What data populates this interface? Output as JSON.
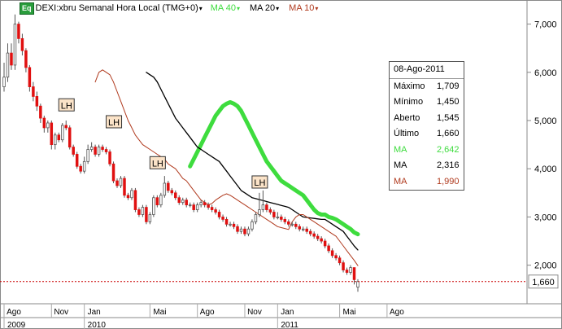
{
  "header": {
    "eq_badge": "Eq",
    "symbol_label": "DEXI:xbru Semanal Hora Local (TMG+0)",
    "ma40_label": "MA 40",
    "ma20_label": "MA 20",
    "ma10_label": "MA 10",
    "ma40_color": "#3edc3e",
    "ma20_color": "#000000",
    "ma10_color": "#b03a1e",
    "dropdown_arrow": "▾"
  },
  "info_box": {
    "date": "08-Ago-2011",
    "rows": [
      {
        "label": "Máximo",
        "value": "1,709",
        "color": "#000000"
      },
      {
        "label": "Mínimo",
        "value": "1,450",
        "color": "#000000"
      },
      {
        "label": "Aberto",
        "value": "1,545",
        "color": "#000000"
      },
      {
        "label": "Último",
        "value": "1,660",
        "color": "#000000"
      },
      {
        "label": "MA",
        "value": "2,642",
        "color": "#3edc3e"
      },
      {
        "label": "MA",
        "value": "2,316",
        "color": "#000000"
      },
      {
        "label": "MA",
        "value": "1,990",
        "color": "#b03a1e"
      }
    ]
  },
  "chart_data": {
    "type": "candlestick",
    "y_axis": {
      "min": 1200,
      "max": 7500,
      "ticks": [
        2000,
        3000,
        4000,
        5000,
        6000,
        7000
      ],
      "tick_labels": [
        "2,000",
        "3,000",
        "4,000",
        "5,000",
        "6,000",
        "7,000"
      ]
    },
    "last_price": {
      "value": 1660,
      "label": "1,660",
      "color": "#cc0000"
    },
    "x_axis": {
      "months": [
        {
          "label": "Ago",
          "week": 0
        },
        {
          "label": "Nov",
          "week": 13
        },
        {
          "label": "Jan",
          "week": 22
        },
        {
          "label": "Mai",
          "week": 40
        },
        {
          "label": "Ago",
          "week": 53
        },
        {
          "label": "Nov",
          "week": 66
        },
        {
          "label": "Jan",
          "week": 75
        },
        {
          "label": "Mai",
          "week": 92
        },
        {
          "label": "Ago",
          "week": 105
        }
      ],
      "years": [
        {
          "label": "2009",
          "start_week": 0
        },
        {
          "label": "2010",
          "start_week": 22
        },
        {
          "label": "2011",
          "start_week": 75
        }
      ]
    },
    "colors": {
      "up": "#ffffff",
      "down": "#e01010",
      "wick": "#555555",
      "up_border": "#555555"
    },
    "candles_close": [
      5900,
      6400,
      6150,
      7000,
      6700,
      6450,
      6100,
      5700,
      5500,
      5300,
      5050,
      4850,
      4950,
      4500,
      4700,
      4600,
      4900,
      4850,
      4450,
      4300,
      4050,
      3950,
      4150,
      4400,
      4450,
      4300,
      4450,
      4400,
      4350,
      4100,
      3750,
      3650,
      3800,
      3450,
      3400,
      3550,
      3150,
      3050,
      3200,
      2900,
      3050,
      3400,
      3250,
      3450,
      3700,
      3550,
      3500,
      3400,
      3300,
      3350,
      3250,
      3250,
      3150,
      3250,
      3300,
      3250,
      3200,
      3150,
      3100,
      3000,
      2950,
      2850,
      2850,
      2800,
      2700,
      2750,
      2650,
      2750,
      2900,
      3050,
      3150,
      3250,
      3150,
      3100,
      3000,
      3000,
      2950,
      2900,
      2850,
      2850,
      2800,
      2750,
      2750,
      2700,
      2650,
      2600,
      2550,
      2500,
      2400,
      2300,
      2200,
      2150,
      2050,
      1900,
      1850,
      1950,
      1700,
      1660
    ],
    "candles_open": [
      5700,
      5900,
      6400,
      6150,
      7000,
      6700,
      6450,
      6100,
      5700,
      5500,
      5300,
      5050,
      4850,
      4950,
      4500,
      4700,
      4600,
      4900,
      4850,
      4450,
      4300,
      4050,
      3950,
      4150,
      4400,
      4450,
      4300,
      4450,
      4400,
      4350,
      4100,
      3750,
      3650,
      3800,
      3450,
      3400,
      3550,
      3150,
      3050,
      3200,
      2900,
      3050,
      3400,
      3250,
      3450,
      3700,
      3550,
      3500,
      3400,
      3300,
      3350,
      3250,
      3250,
      3150,
      3250,
      3300,
      3250,
      3200,
      3150,
      3100,
      3000,
      2950,
      2850,
      2850,
      2800,
      2700,
      2750,
      2650,
      2750,
      2900,
      3050,
      3150,
      3250,
      3150,
      3100,
      3000,
      3000,
      2950,
      2900,
      2850,
      2850,
      2800,
      2750,
      2750,
      2700,
      2650,
      2600,
      2550,
      2500,
      2400,
      2300,
      2200,
      2150,
      2050,
      1900,
      1850,
      1950,
      1545
    ],
    "candles_high": [
      6200,
      6600,
      6600,
      7200,
      7050,
      6800,
      6500,
      6150,
      5800,
      5600,
      5350,
      5100,
      5000,
      5000,
      4750,
      4750,
      4950,
      5000,
      4900,
      4500,
      4350,
      4100,
      4250,
      4500,
      4550,
      4500,
      4500,
      4500,
      4450,
      4400,
      4150,
      3800,
      3850,
      3850,
      3500,
      3600,
      3600,
      3200,
      3250,
      3250,
      3100,
      3450,
      3450,
      3500,
      3850,
      3750,
      3600,
      3550,
      3450,
      3400,
      3400,
      3300,
      3300,
      3300,
      3350,
      3350,
      3300,
      3250,
      3200,
      3150,
      3050,
      3000,
      2900,
      2900,
      2850,
      2800,
      2800,
      2800,
      2950,
      3100,
      3500,
      3550,
      3300,
      3200,
      3150,
      3100,
      3050,
      3000,
      2950,
      2900,
      2900,
      2850,
      2800,
      2800,
      2750,
      2700,
      2650,
      2600,
      2550,
      2450,
      2350,
      2250,
      2200,
      2100,
      1950,
      2000,
      1950,
      1709
    ],
    "candles_low": [
      5600,
      5800,
      6050,
      6050,
      6600,
      6350,
      6000,
      5600,
      5400,
      5200,
      4950,
      4750,
      4750,
      4400,
      4400,
      4550,
      4550,
      4800,
      4400,
      4250,
      4000,
      3900,
      3900,
      4100,
      4350,
      4250,
      4250,
      4350,
      4300,
      4050,
      3700,
      3600,
      3600,
      3400,
      3350,
      3350,
      3100,
      3000,
      3000,
      2850,
      2850,
      3000,
      3200,
      3200,
      3400,
      3500,
      3450,
      3350,
      3250,
      3250,
      3200,
      3200,
      3100,
      3100,
      3200,
      3200,
      3150,
      3100,
      3050,
      2950,
      2900,
      2800,
      2800,
      2750,
      2650,
      2650,
      2600,
      2600,
      2700,
      2850,
      3000,
      3100,
      3100,
      3050,
      2950,
      2950,
      2900,
      2850,
      2800,
      2800,
      2750,
      2700,
      2700,
      2650,
      2600,
      2550,
      2500,
      2450,
      2350,
      2250,
      2150,
      2100,
      2000,
      1850,
      1800,
      1800,
      1600,
      1450
    ],
    "ma40": [
      null,
      null,
      null,
      null,
      null,
      null,
      null,
      null,
      null,
      null,
      null,
      null,
      null,
      null,
      null,
      null,
      null,
      null,
      null,
      null,
      null,
      null,
      null,
      null,
      null,
      null,
      null,
      null,
      null,
      null,
      null,
      null,
      null,
      null,
      null,
      null,
      null,
      null,
      null,
      null,
      4050,
      4200,
      4350,
      4500,
      4650,
      4800,
      4950,
      5100,
      5200,
      5300,
      5350,
      5380,
      5350,
      5300,
      5200,
      5050,
      4900,
      4750,
      4600,
      4450,
      4300,
      4150,
      4050,
      3950,
      3850,
      3750,
      3700,
      3650,
      3600,
      3550,
      3500,
      3450,
      3350,
      3250,
      3150,
      3080,
      3050,
      3050,
      3000,
      2980,
      2950,
      2900,
      2850,
      2800,
      2750,
      2680,
      2642
    ],
    "ma20": [
      6000,
      5950,
      5900,
      5800,
      5650,
      5500,
      5350,
      5200,
      5050,
      4950,
      4850,
      4750,
      4650,
      4550,
      4450,
      4400,
      4350,
      4300,
      4250,
      4200,
      4150,
      4050,
      3950,
      3850,
      3750,
      3650,
      3550,
      3500,
      3450,
      3400,
      3380,
      3360,
      3340,
      3320,
      3300,
      3280,
      3260,
      3240,
      3220,
      3200,
      3150,
      3100,
      3050,
      3000,
      2990,
      2980,
      2970,
      2960,
      2950,
      2950,
      2900,
      2850,
      2800,
      2750,
      2700,
      2600,
      2500,
      2400,
      2316
    ],
    "ma10": [
      5800,
      6000,
      6050,
      6000,
      5950,
      5800,
      5600,
      5400,
      5200,
      5000,
      4850,
      4700,
      4600,
      4500,
      4450,
      4400,
      4350,
      4300,
      4250,
      4200,
      4100,
      4050,
      4000,
      3900,
      3800,
      3750,
      3650,
      3550,
      3450,
      3350,
      3300,
      3250,
      3280,
      3350,
      3400,
      3450,
      3480,
      3450,
      3400,
      3350,
      3300,
      3250,
      3200,
      3150,
      3100,
      3050,
      3000,
      2950,
      2900,
      2850,
      2800,
      2780,
      2760,
      2740,
      2900,
      3000,
      3050,
      3050,
      3000,
      2950,
      2900,
      2850,
      2800,
      2750,
      2700,
      2650,
      2600,
      2500,
      2400,
      2300,
      2200,
      2100,
      1990
    ],
    "lh_markers": [
      {
        "label": "LH",
        "week": 17,
        "value": 5300
      },
      {
        "label": "LH",
        "week": 30,
        "value": 4950
      },
      {
        "label": "LH",
        "week": 42,
        "value": 4100
      },
      {
        "label": "LH",
        "week": 70,
        "value": 3700
      }
    ]
  }
}
